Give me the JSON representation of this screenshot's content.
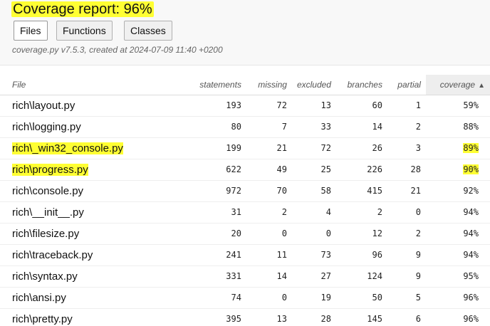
{
  "header": {
    "title": "Coverage report: 96%",
    "meta": "coverage.py v7.5.3, created at 2024-07-09 11:40 +0200",
    "buttons": {
      "files": "Files",
      "functions": "Functions",
      "classes": "Classes"
    }
  },
  "table": {
    "columns": {
      "file": "File",
      "statements": "statements",
      "missing": "missing",
      "excluded": "excluded",
      "branches": "branches",
      "partial": "partial",
      "coverage": "coverage"
    },
    "sort_arrow": "▲",
    "rows": [
      {
        "file": "rich\\layout.py",
        "statements": "193",
        "missing": "72",
        "excluded": "13",
        "branches": "60",
        "partial": "1",
        "coverage": "59%",
        "highlight": false
      },
      {
        "file": "rich\\logging.py",
        "statements": "80",
        "missing": "7",
        "excluded": "33",
        "branches": "14",
        "partial": "2",
        "coverage": "88%",
        "highlight": false
      },
      {
        "file": "rich\\_win32_console.py",
        "statements": "199",
        "missing": "21",
        "excluded": "72",
        "branches": "26",
        "partial": "3",
        "coverage": "89%",
        "highlight": true
      },
      {
        "file": "rich\\progress.py",
        "statements": "622",
        "missing": "49",
        "excluded": "25",
        "branches": "226",
        "partial": "28",
        "coverage": "90%",
        "highlight": true
      },
      {
        "file": "rich\\console.py",
        "statements": "972",
        "missing": "70",
        "excluded": "58",
        "branches": "415",
        "partial": "21",
        "coverage": "92%",
        "highlight": false
      },
      {
        "file": "rich\\__init__.py",
        "statements": "31",
        "missing": "2",
        "excluded": "4",
        "branches": "2",
        "partial": "0",
        "coverage": "94%",
        "highlight": false
      },
      {
        "file": "rich\\filesize.py",
        "statements": "20",
        "missing": "0",
        "excluded": "0",
        "branches": "12",
        "partial": "2",
        "coverage": "94%",
        "highlight": false
      },
      {
        "file": "rich\\traceback.py",
        "statements": "241",
        "missing": "11",
        "excluded": "73",
        "branches": "96",
        "partial": "9",
        "coverage": "94%",
        "highlight": false
      },
      {
        "file": "rich\\syntax.py",
        "statements": "331",
        "missing": "14",
        "excluded": "27",
        "branches": "124",
        "partial": "9",
        "coverage": "95%",
        "highlight": false
      },
      {
        "file": "rich\\ansi.py",
        "statements": "74",
        "missing": "0",
        "excluded": "19",
        "branches": "50",
        "partial": "5",
        "coverage": "96%",
        "highlight": false
      },
      {
        "file": "rich\\pretty.py",
        "statements": "395",
        "missing": "13",
        "excluded": "28",
        "branches": "145",
        "partial": "6",
        "coverage": "96%",
        "highlight": false
      }
    ]
  },
  "colors": {
    "highlight": "#ffff33",
    "header_bg": "#f8f8f8"
  }
}
